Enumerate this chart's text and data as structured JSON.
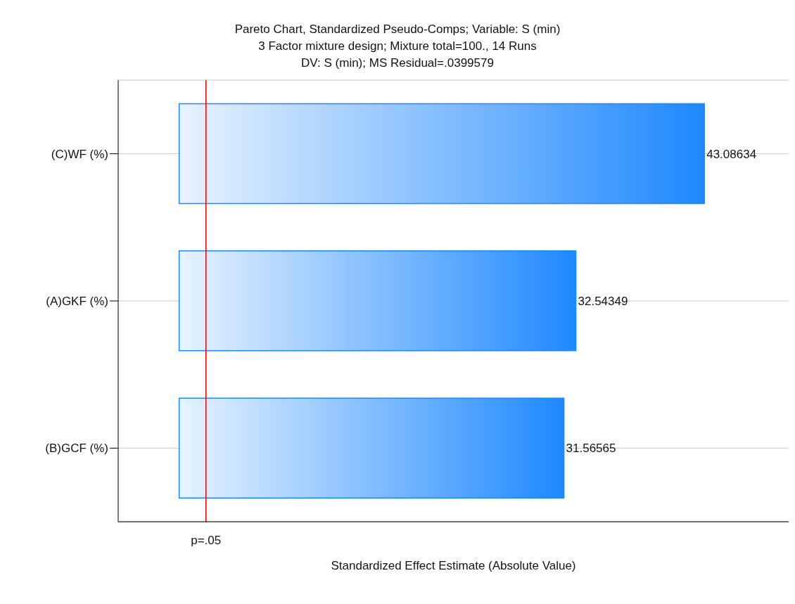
{
  "chart_data": {
    "type": "bar",
    "orientation": "horizontal",
    "title": "Pareto Chart, Standardized Pseudo-Comps; Variable: S (min)",
    "subtitle": "3 Factor mixture design; Mixture total=100., 14 Runs\nDV: S (min); MS Residual=.0399579",
    "xlabel": "Standardized Effect Estimate (Absolute Value)",
    "categories": [
      "(C)WF (%)",
      "(A)GKF (%)",
      "(B)GCF (%)"
    ],
    "values": [
      43.08634,
      32.54349,
      31.56565
    ],
    "color": "#1e88ff",
    "data_labels": true,
    "xlim": [
      -5,
      50
    ],
    "tick_labels": "y",
    "grid": "y",
    "legend": false,
    "ref_lines": [
      {
        "axis": "x",
        "value": 2.2,
        "label": "p=.05",
        "color": "#e00000"
      }
    ]
  }
}
